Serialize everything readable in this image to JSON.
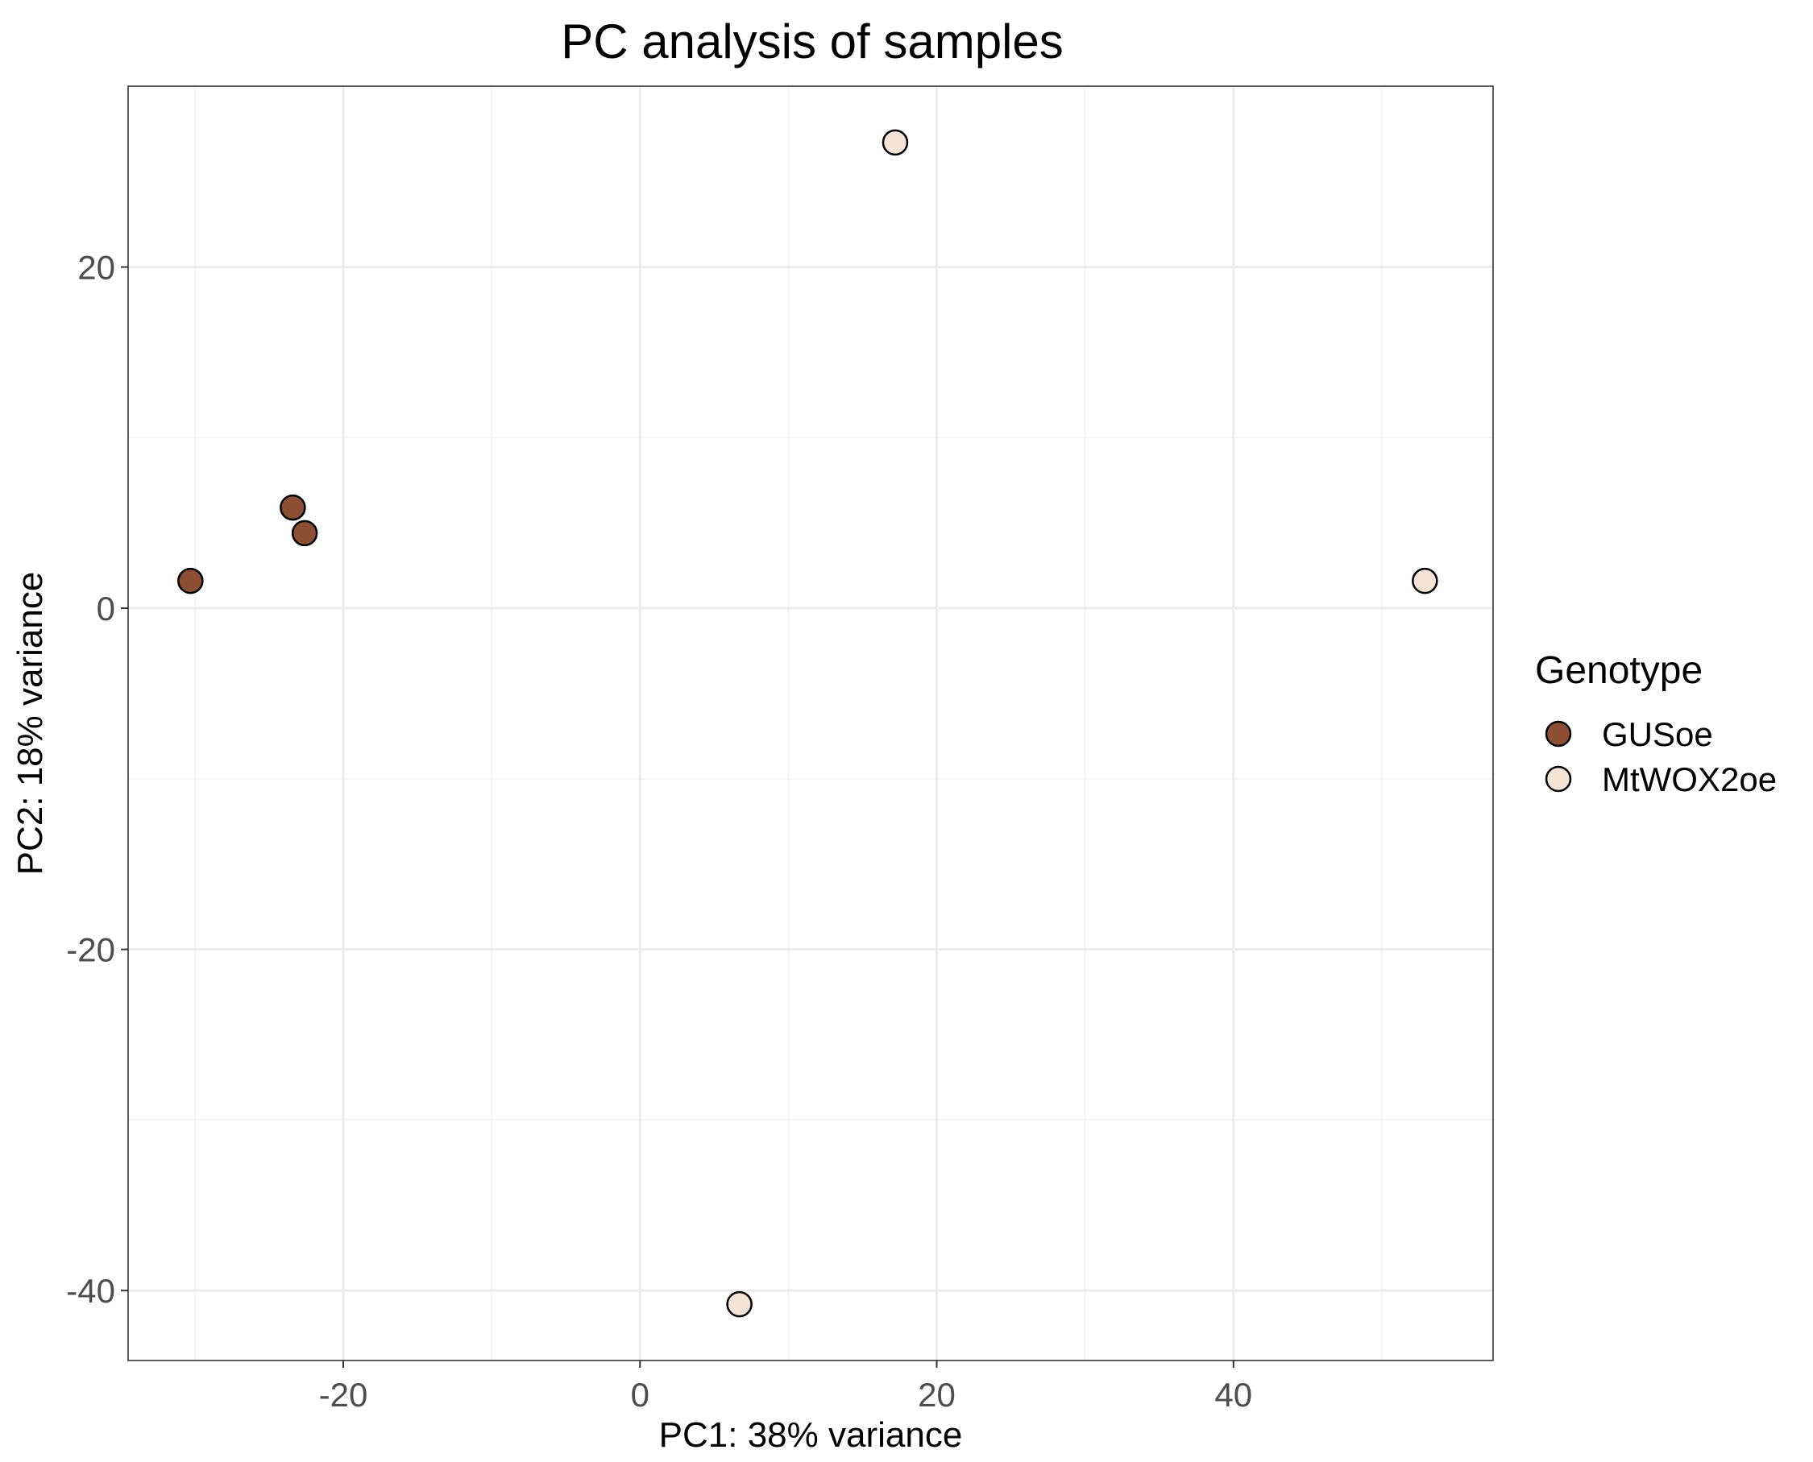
{
  "chart_data": {
    "type": "scatter",
    "title": "PC analysis of samples",
    "xlabel": "PC1: 38% variance",
    "ylabel": "PC2: 18% variance",
    "xlim": [
      -34.5,
      57.5
    ],
    "ylim": [
      -44.1,
      30.6
    ],
    "x_ticks": [
      -20,
      0,
      20,
      40
    ],
    "y_ticks": [
      -40,
      -20,
      0,
      20
    ],
    "x_tick_labels": [
      "-20",
      "0",
      "20",
      "40"
    ],
    "y_tick_labels": [
      "-40",
      "-20",
      "0",
      "20"
    ],
    "x_minor_ticks": [
      -30,
      -10,
      10,
      30,
      50
    ],
    "y_minor_ticks": [
      -30,
      -10,
      10
    ],
    "legend": {
      "title": "Genotype",
      "position": "right",
      "entries": [
        {
          "label": "GUSoe",
          "color": "#8c4f33"
        },
        {
          "label": "MtWOX2oe",
          "color": "#f3e4d6"
        }
      ]
    },
    "series": [
      {
        "name": "GUSoe",
        "color": "#8c4f33",
        "points": [
          {
            "x": -30.3,
            "y": 1.6
          },
          {
            "x": -23.4,
            "y": 5.9
          },
          {
            "x": -22.6,
            "y": 4.4
          }
        ]
      },
      {
        "name": "MtWOX2oe",
        "color": "#f3e4d6",
        "points": [
          {
            "x": 17.2,
            "y": 27.3
          },
          {
            "x": 52.9,
            "y": 1.6
          },
          {
            "x": 6.7,
            "y": -40.8
          }
        ]
      }
    ]
  }
}
